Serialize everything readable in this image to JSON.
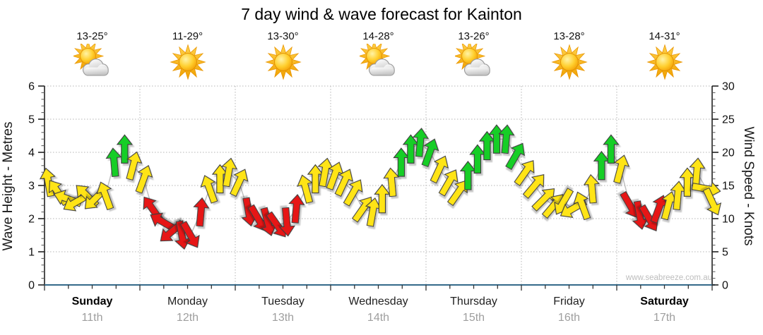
{
  "title": "7 day wind & wave forecast for Kainton",
  "watermark": "www.seabreeze.com.au",
  "axes": {
    "left_label": "Wave Height - Metres",
    "right_label": "Wind Speed - Knots",
    "left_ticks": [
      0,
      1,
      2,
      3,
      4,
      5,
      6
    ],
    "right_ticks": [
      0,
      5,
      10,
      15,
      20,
      25,
      30
    ],
    "left_range": [
      0,
      6
    ],
    "right_range": [
      0,
      30
    ]
  },
  "days": [
    {
      "name": "Sunday",
      "date": "11th",
      "temp": "13-25°",
      "icon": "partly-cloudy",
      "bold": true
    },
    {
      "name": "Monday",
      "date": "12th",
      "temp": "11-29°",
      "icon": "sunny",
      "bold": false
    },
    {
      "name": "Tuesday",
      "date": "13th",
      "temp": "13-30°",
      "icon": "sunny",
      "bold": false
    },
    {
      "name": "Wednesday",
      "date": "14th",
      "temp": "14-28°",
      "icon": "partly-cloudy",
      "bold": false
    },
    {
      "name": "Thursday",
      "date": "15th",
      "temp": "13-26°",
      "icon": "partly-cloudy",
      "bold": false
    },
    {
      "name": "Friday",
      "date": "16th",
      "temp": "13-28°",
      "icon": "sunny",
      "bold": false
    },
    {
      "name": "Saturday",
      "date": "17th",
      "temp": "14-31°",
      "icon": "sunny",
      "bold": true
    }
  ],
  "colors": {
    "arrow_yellow": "#FFE412",
    "arrow_green": "#17CE27",
    "arrow_red": "#E61414",
    "axis_bottom": "#346A8A",
    "axis_dark": "#222222",
    "grid": "#b5b5b5",
    "connect_line": "#c0c0c0"
  },
  "chart_data": {
    "type": "line",
    "subtype": "wind-arrow-series",
    "title": "7 day wind & wave forecast for Kainton",
    "x_unit": "days (0 = start of Sunday 11th, 7 = end of Saturday 17th)",
    "x_range": [
      0,
      7
    ],
    "left_axis": {
      "label": "Wave Height - Metres",
      "range": [
        0,
        6
      ]
    },
    "right_axis": {
      "label": "Wind Speed - Knots",
      "range": [
        0,
        30
      ]
    },
    "axes_alignment": "1 metre on left axis = 5 knots on right axis (single series read on both)",
    "grid": "dotted horizontal each metre, dotted vertical each day boundary",
    "point_format": [
      "day_position",
      "wind_knots",
      "color(y=yellow,g=green,r=red)",
      "arrow_direction_deg_0N_clockwise"
    ],
    "points": [
      [
        0.04,
        15.5,
        "y",
        -10
      ],
      [
        0.14,
        14,
        "y",
        -35
      ],
      [
        0.24,
        13,
        "y",
        -70
      ],
      [
        0.33,
        12.5,
        "y",
        -120
      ],
      [
        0.44,
        13.5,
        "y",
        -45
      ],
      [
        0.53,
        13,
        "y",
        -135
      ],
      [
        0.64,
        13.5,
        "y",
        -20
      ],
      [
        0.73,
        18.5,
        "g",
        -5
      ],
      [
        0.84,
        20.5,
        "g",
        0
      ],
      [
        0.93,
        18,
        "y",
        15
      ],
      [
        1.04,
        16,
        "y",
        20
      ],
      [
        1.13,
        11.5,
        "r",
        -35
      ],
      [
        1.24,
        9.5,
        "r",
        -60
      ],
      [
        1.33,
        8,
        "r",
        -130
      ],
      [
        1.44,
        7.5,
        "r",
        170
      ],
      [
        1.53,
        7.5,
        "r",
        150
      ],
      [
        1.64,
        11,
        "r",
        5
      ],
      [
        1.73,
        14.5,
        "y",
        -20
      ],
      [
        1.84,
        16,
        "y",
        0
      ],
      [
        1.93,
        17,
        "y",
        10
      ],
      [
        2.04,
        15.5,
        "y",
        25
      ],
      [
        2.14,
        11,
        "r",
        170
      ],
      [
        2.24,
        10,
        "r",
        150
      ],
      [
        2.34,
        9.5,
        "r",
        165
      ],
      [
        2.44,
        9,
        "r",
        145
      ],
      [
        2.54,
        9.5,
        "r",
        175
      ],
      [
        2.64,
        11.5,
        "r",
        5
      ],
      [
        2.74,
        14.5,
        "y",
        -15
      ],
      [
        2.84,
        16,
        "y",
        0
      ],
      [
        2.94,
        17,
        "y",
        10
      ],
      [
        3.04,
        16.5,
        "y",
        20
      ],
      [
        3.14,
        15.5,
        "y",
        25
      ],
      [
        3.24,
        14,
        "y",
        30
      ],
      [
        3.34,
        11.5,
        "y",
        35
      ],
      [
        3.44,
        11,
        "y",
        10
      ],
      [
        3.54,
        13,
        "y",
        0
      ],
      [
        3.64,
        15.5,
        "y",
        -5
      ],
      [
        3.74,
        18.5,
        "g",
        0
      ],
      [
        3.84,
        20.5,
        "g",
        0
      ],
      [
        3.94,
        21.5,
        "g",
        5
      ],
      [
        4.04,
        20,
        "g",
        20
      ],
      [
        4.14,
        17.5,
        "y",
        25
      ],
      [
        4.24,
        15.5,
        "y",
        30
      ],
      [
        4.34,
        14,
        "y",
        35
      ],
      [
        4.44,
        16.5,
        "g",
        0
      ],
      [
        4.54,
        19,
        "g",
        0
      ],
      [
        4.64,
        21,
        "g",
        0
      ],
      [
        4.74,
        22,
        "g",
        0
      ],
      [
        4.84,
        22,
        "g",
        5
      ],
      [
        4.94,
        19.5,
        "g",
        30
      ],
      [
        5.04,
        17,
        "y",
        35
      ],
      [
        5.14,
        15,
        "y",
        40
      ],
      [
        5.24,
        13,
        "y",
        45
      ],
      [
        5.34,
        12,
        "y",
        40
      ],
      [
        5.44,
        12.5,
        "y",
        -150
      ],
      [
        5.54,
        11.5,
        "y",
        -120
      ],
      [
        5.64,
        12,
        "y",
        -20
      ],
      [
        5.74,
        14.5,
        "y",
        -5
      ],
      [
        5.84,
        18,
        "g",
        0
      ],
      [
        5.94,
        20.5,
        "g",
        0
      ],
      [
        6.04,
        17.5,
        "y",
        15
      ],
      [
        6.14,
        12,
        "r",
        150
      ],
      [
        6.24,
        10.5,
        "r",
        170
      ],
      [
        6.34,
        10,
        "r",
        150
      ],
      [
        6.44,
        11.5,
        "r",
        20
      ],
      [
        6.54,
        12,
        "y",
        15
      ],
      [
        6.64,
        13.5,
        "y",
        5
      ],
      [
        6.74,
        15.5,
        "y",
        0
      ],
      [
        6.84,
        17,
        "y",
        5
      ],
      [
        6.94,
        14.5,
        "y",
        100
      ],
      [
        7.0,
        12.5,
        "y",
        155
      ]
    ]
  }
}
